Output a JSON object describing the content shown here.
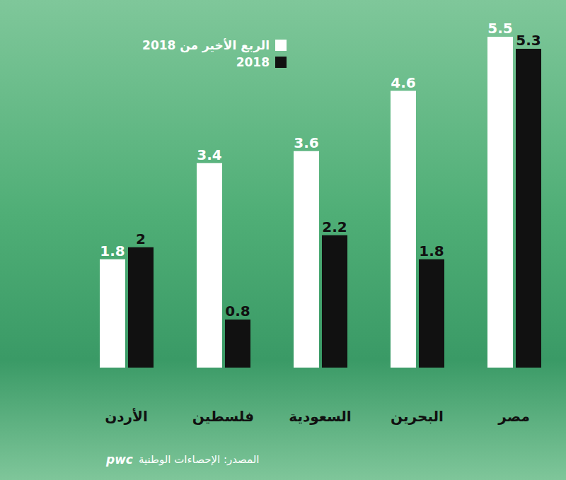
{
  "chart_data": {
    "type": "bar",
    "categories": [
      "الأردن",
      "فلسطين",
      "السعودية",
      "البحرين",
      "مصر"
    ],
    "series": [
      {
        "name": "الربع الأخير من 2018",
        "color": "#ffffff",
        "values": [
          1.8,
          3.4,
          3.6,
          4.6,
          5.5
        ]
      },
      {
        "name": "2018",
        "color": "#111111",
        "values": [
          2,
          0.8,
          2.2,
          1.8,
          5.3
        ]
      }
    ],
    "ylim": [
      0,
      5.5
    ],
    "grid": false,
    "legend": "top",
    "data_labels": true,
    "tick_labels": "x",
    "source": "المصدر: الإحصاءات الوطنية",
    "logo": "pwc"
  }
}
